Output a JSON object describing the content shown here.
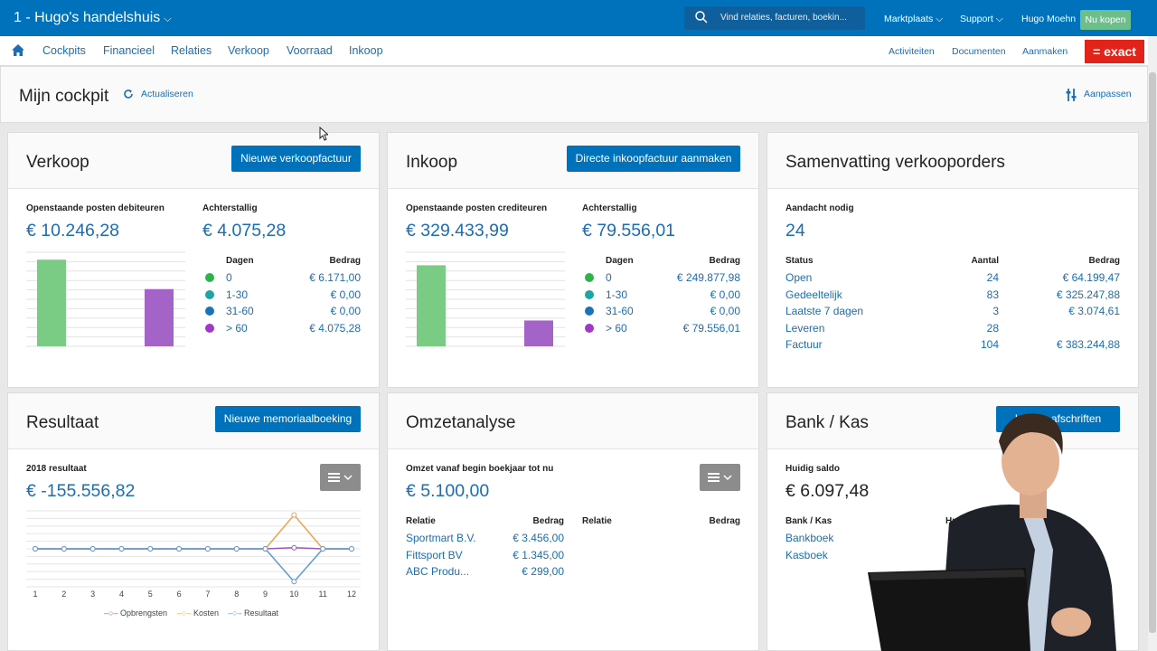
{
  "topbar": {
    "company": "1 - Hugo's handelshuis",
    "search_placeholder": "Vind relaties, facturen, boekin...",
    "marktplaats": "Marktplaats",
    "support": "Support",
    "user": "Hugo Moehn",
    "buy": "Nu kopen"
  },
  "menu": {
    "items": [
      "Cockpits",
      "Financieel",
      "Relaties",
      "Verkoop",
      "Voorraad",
      "Inkoop"
    ],
    "right": [
      "Activiteiten",
      "Documenten",
      "Aanmaken"
    ],
    "brand": "= exact"
  },
  "cockpit": {
    "title": "Mijn cockpit",
    "refresh": "Actualiseren",
    "customize": "Aanpassen"
  },
  "verkoop": {
    "title": "Verkoop",
    "button": "Nieuwe verkoopfactuur",
    "open_label": "Openstaande posten debiteuren",
    "open_value": "€ 10.246,28",
    "overdue_label": "Achterstallig",
    "overdue_value": "€ 4.075,28",
    "col_days": "Dagen",
    "col_amount": "Bedrag",
    "rows": [
      {
        "days": "0",
        "amount": "€ 6.171,00"
      },
      {
        "days": "1-30",
        "amount": "€ 0,00"
      },
      {
        "days": "31-60",
        "amount": "€ 0,00"
      },
      {
        "days": "> 60",
        "amount": "€ 4.075,28"
      }
    ],
    "chart_data": {
      "type": "bar",
      "categories": [
        "0",
        "> 60"
      ],
      "values": [
        6171.0,
        4075.28
      ],
      "ylim": [
        0,
        6700
      ]
    }
  },
  "inkoop": {
    "title": "Inkoop",
    "button": "Directe inkoopfactuur aanmaken",
    "open_label": "Openstaande posten crediteuren",
    "open_value": "€ 329.433,99",
    "overdue_label": "Achterstallig",
    "overdue_value": "€ 79.556,01",
    "col_days": "Dagen",
    "col_amount": "Bedrag",
    "rows": [
      {
        "days": "0",
        "amount": "€ 249.877,98"
      },
      {
        "days": "1-30",
        "amount": "€ 0,00"
      },
      {
        "days": "31-60",
        "amount": "€ 0,00"
      },
      {
        "days": "> 60",
        "amount": "€ 79.556,01"
      }
    ],
    "chart_data": {
      "type": "bar",
      "categories": [
        "0",
        "> 60"
      ],
      "values": [
        249877.98,
        79556.01
      ],
      "ylim": [
        0,
        290000
      ]
    }
  },
  "samenvatting": {
    "title": "Samenvatting verkooporders",
    "attention_label": "Aandacht nodig",
    "attention_value": "24",
    "col_status": "Status",
    "col_count": "Aantal",
    "col_amount": "Bedrag",
    "rows": [
      {
        "status": "Open",
        "count": "24",
        "amount": "€ 64.199,47"
      },
      {
        "status": "Gedeeltelijk",
        "count": "83",
        "amount": "€ 325.247,88"
      },
      {
        "status": "Laatste 7 dagen",
        "count": "3",
        "amount": "€ 3.074,61"
      },
      {
        "status": "Leveren",
        "count": "28",
        "amount": ""
      },
      {
        "status": "Factuur",
        "count": "104",
        "amount": "€ 383.244,88"
      }
    ]
  },
  "resultaat": {
    "title": "Resultaat",
    "button": "Nieuwe memoriaalboeking",
    "label": "2018 resultaat",
    "value": "€ -155.556,82",
    "legend": [
      "Opbrengsten",
      "Kosten",
      "Resultaat"
    ],
    "chart_data": {
      "type": "line",
      "x": [
        "1",
        "2",
        "3",
        "4",
        "5",
        "6",
        "7",
        "8",
        "9",
        "10",
        "11",
        "12"
      ],
      "series": [
        {
          "name": "Opbrengsten",
          "values": [
            0,
            0,
            0,
            0,
            0,
            0,
            0,
            0,
            0,
            5100,
            0,
            0
          ]
        },
        {
          "name": "Kosten",
          "values": [
            0,
            0,
            0,
            0,
            0,
            0,
            0,
            0,
            0,
            160657,
            0,
            0
          ]
        },
        {
          "name": "Resultaat",
          "values": [
            0,
            0,
            0,
            0,
            0,
            0,
            0,
            0,
            0,
            -155557,
            0,
            0
          ]
        }
      ],
      "ylim": [
        -180000,
        180000
      ],
      "colors": [
        "#9b59b6",
        "#f0a04b",
        "#5b9bd5"
      ]
    }
  },
  "omzet": {
    "title": "Omzetanalyse",
    "label": "Omzet vanaf begin boekjaar tot nu",
    "value": "€ 5.100,00",
    "col_relation": "Relatie",
    "col_amount": "Bedrag",
    "col_relation2": "Relatie",
    "col_amount2": "Bedrag",
    "rows": [
      {
        "relation": "Sportmart B.V.",
        "amount": "€ 3.456,00"
      },
      {
        "relation": "Fittsport BV",
        "amount": "€ 1.345,00"
      },
      {
        "relation": "ABC Produ...",
        "amount": "€ 299,00"
      }
    ]
  },
  "bank": {
    "title": "Bank / Kas",
    "button": "In... en afschriften",
    "label": "Huidig saldo",
    "value": "€ 6.097,48",
    "col_bank": "Bank / Kas",
    "col_current": "Huid",
    "rows": [
      {
        "name": "Bankboek",
        "amount": "€"
      },
      {
        "name": "Kasboek",
        "amount": ""
      }
    ]
  },
  "colors": {
    "brand": "#0072bc",
    "link": "#1b6db5",
    "green": "#7acc85",
    "purple": "#a463c6",
    "teal": "#1ea4a4",
    "blue": "#1a73b8",
    "dotgreen": "#2db34a",
    "dotpurple": "#a038c8"
  }
}
